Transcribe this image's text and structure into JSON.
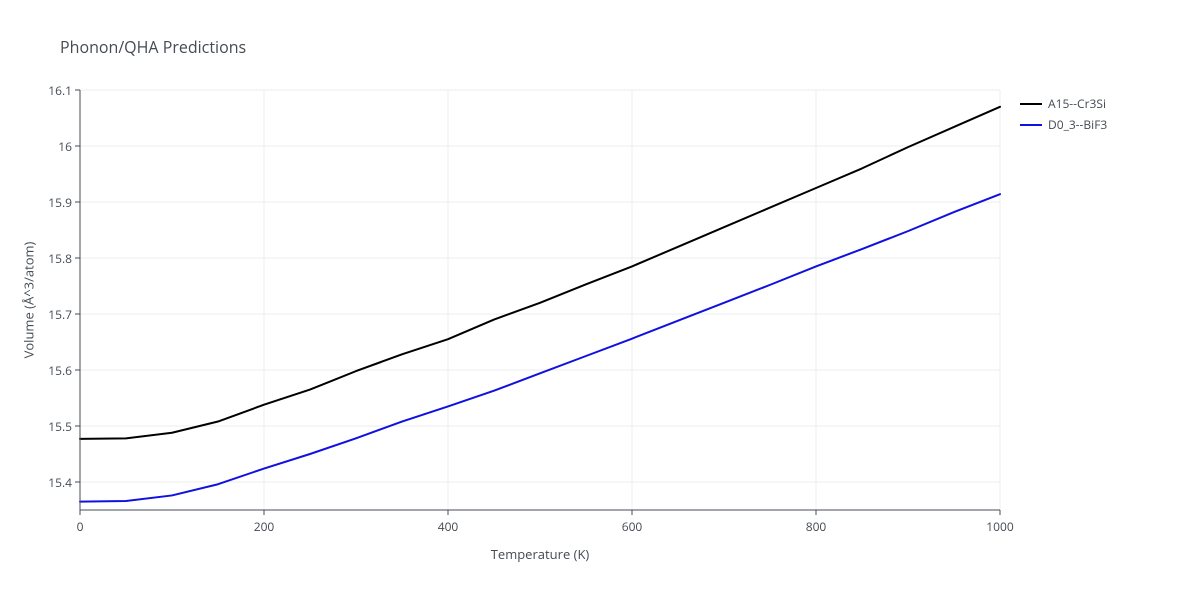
{
  "chart": {
    "type": "line",
    "title": "Phonon/QHA Predictions",
    "title_fontsize": 16,
    "xlabel": "Temperature (K)",
    "ylabel": "Volume (Å^3/atom)",
    "label_fontsize": 13,
    "tick_fontsize": 12,
    "background_color": "#ffffff",
    "plot_border_color": "#444b53",
    "grid_color": "#eeeeee",
    "text_color": "#444b53",
    "xlim": [
      0,
      1000
    ],
    "ylim": [
      15.35,
      16.1
    ],
    "xticks": [
      0,
      200,
      400,
      600,
      800,
      1000
    ],
    "yticks": [
      15.4,
      15.5,
      15.6,
      15.7,
      15.8,
      15.9,
      16,
      16.1
    ],
    "series": [
      {
        "name": "A15--Cr3Si",
        "color": "#000000",
        "line_width": 2,
        "x": [
          0,
          50,
          100,
          150,
          200,
          250,
          300,
          350,
          400,
          450,
          500,
          550,
          600,
          650,
          700,
          750,
          800,
          850,
          900,
          950,
          1000
        ],
        "y": [
          15.477,
          15.478,
          15.488,
          15.508,
          15.538,
          15.565,
          15.598,
          15.628,
          15.655,
          15.69,
          15.72,
          15.753,
          15.785,
          15.82,
          15.855,
          15.89,
          15.925,
          15.96,
          15.998,
          16.034,
          16.07
        ]
      },
      {
        "name": "D0_3--BiF3",
        "color": "#1010e0",
        "line_width": 2,
        "x": [
          0,
          50,
          100,
          150,
          200,
          250,
          300,
          350,
          400,
          450,
          500,
          550,
          600,
          650,
          700,
          750,
          800,
          850,
          900,
          950,
          1000
        ],
        "y": [
          15.365,
          15.366,
          15.376,
          15.396,
          15.424,
          15.45,
          15.478,
          15.508,
          15.535,
          15.563,
          15.594,
          15.625,
          15.656,
          15.688,
          15.72,
          15.752,
          15.785,
          15.816,
          15.848,
          15.882,
          15.914
        ]
      }
    ],
    "legend_position": "right"
  }
}
